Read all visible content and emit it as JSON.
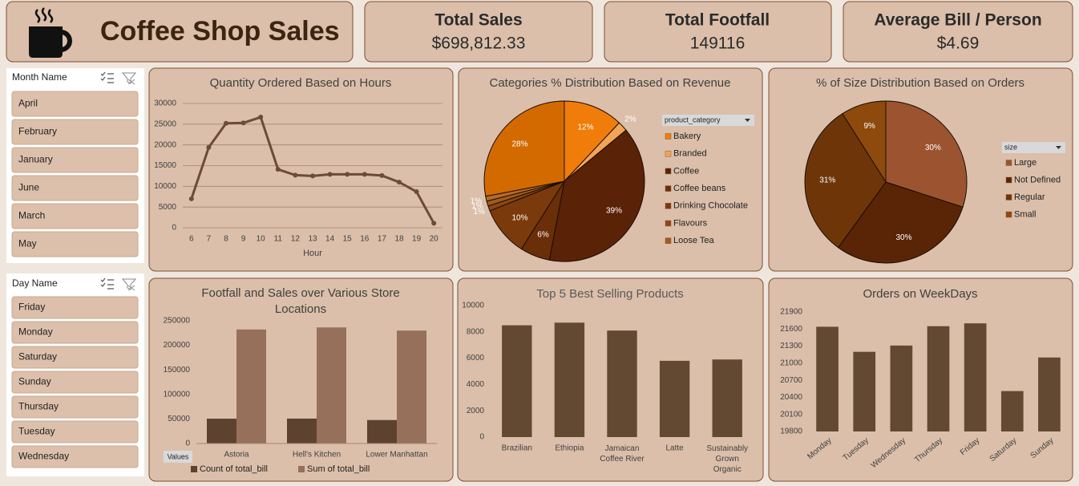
{
  "header": {
    "title": "Coffee Shop Sales"
  },
  "kpis": [
    {
      "title": "Total Sales",
      "value": "$698,812.33"
    },
    {
      "title": "Total Footfall",
      "value": 149116
    },
    {
      "title": "Average Bill / Person",
      "value": "$4.69"
    }
  ],
  "slicers": [
    {
      "title": "Month Name",
      "items": [
        "April",
        "February",
        "January",
        "June",
        "March",
        "May"
      ]
    },
    {
      "title": "Day Name",
      "items": [
        "Friday",
        "Monday",
        "Saturday",
        "Sunday",
        "Thursday",
        "Tuesday",
        "Wednesday"
      ]
    }
  ],
  "chart_data": [
    {
      "type": "line",
      "title": "Quantity Ordered Based on Hours",
      "x_label": "Hour",
      "categories": [
        6,
        7,
        8,
        9,
        10,
        11,
        12,
        13,
        14,
        15,
        16,
        17,
        18,
        19,
        20
      ],
      "values": [
        7000,
        19400,
        25200,
        25300,
        26700,
        14100,
        12700,
        12500,
        12900,
        12900,
        12900,
        12600,
        11000,
        8700,
        1100
      ],
      "color": "#6b4c36",
      "ylim": [
        0,
        30000
      ],
      "yticks": [
        0,
        5000,
        10000,
        15000,
        20000,
        25000,
        30000
      ],
      "grid": true
    },
    {
      "type": "pie",
      "title": "Categories % Distribution Based on Revenue",
      "legend_title": "product_category",
      "categories": [
        "Bakery",
        "Branded",
        "Coffee",
        "Coffee beans",
        "Drinking Chocolate",
        "Flavours",
        "Loose Tea",
        null,
        null
      ],
      "values": [
        12,
        2,
        39,
        6,
        10,
        1,
        1,
        1,
        28
      ],
      "value_labels": [
        "12%",
        "2%",
        "39%",
        "6%",
        "10%",
        "1%",
        "1%",
        "1%",
        "28%"
      ],
      "colors": [
        "#f07d0a",
        "#f4a456",
        "#5a2206",
        "#6a2f08",
        "#7b3a0b",
        "#8c4714",
        "#a35a1c",
        "#b56a2a",
        "#d36a00"
      ]
    },
    {
      "type": "pie",
      "title": "% of Size Distribution Based on Orders",
      "legend_title": "size",
      "categories": [
        "Large",
        "Not Defined",
        "Regular",
        "Small"
      ],
      "values": [
        30,
        30,
        31,
        9
      ],
      "value_labels": [
        "30%",
        "30%",
        "31%",
        "9%"
      ],
      "colors": [
        "#9c5430",
        "#5a2407",
        "#6e3608",
        "#8d4a0c"
      ]
    },
    {
      "type": "bar",
      "title": "Footfall and Sales over Various Store Locations",
      "legend_button": "Values",
      "categories": [
        "Astoria",
        "Hell's Kitchen",
        "Lower Manhattan"
      ],
      "series": [
        {
          "name": "Count of total_bill",
          "color": "#5e4230",
          "values": [
            50599,
            50735,
            47782
          ]
        },
        {
          "name": "Sum of total_bill",
          "color": "#96705a",
          "values": [
            232244,
            236511,
            230057
          ]
        }
      ],
      "ylim": [
        0,
        250000
      ],
      "yticks": [
        0,
        50000,
        100000,
        150000,
        200000,
        250000
      ]
    },
    {
      "type": "bar",
      "title": "Top 5 Best Selling Products",
      "categories": [
        "Brazilian",
        "Ethiopia",
        "Jamaican Coffee River",
        "Latte",
        "Sustainably Grown Organic"
      ],
      "values": [
        8500,
        8700,
        8100,
        5800,
        5900
      ],
      "color": "#634832",
      "ylim": [
        0,
        10000
      ],
      "yticks": [
        0,
        2000,
        4000,
        6000,
        8000,
        10000
      ]
    },
    {
      "type": "bar",
      "title": "Orders on WeekDays",
      "categories": [
        "Monday",
        "Tuesday",
        "Wednesday",
        "Thursday",
        "Friday",
        "Saturday",
        "Sunday"
      ],
      "values": [
        21640,
        21200,
        21310,
        21650,
        21700,
        20510,
        21100
      ],
      "color": "#634832",
      "ylim": [
        19800,
        21900
      ],
      "yticks": [
        19800,
        20100,
        20400,
        20700,
        21000,
        21300,
        21600,
        21900
      ]
    }
  ]
}
